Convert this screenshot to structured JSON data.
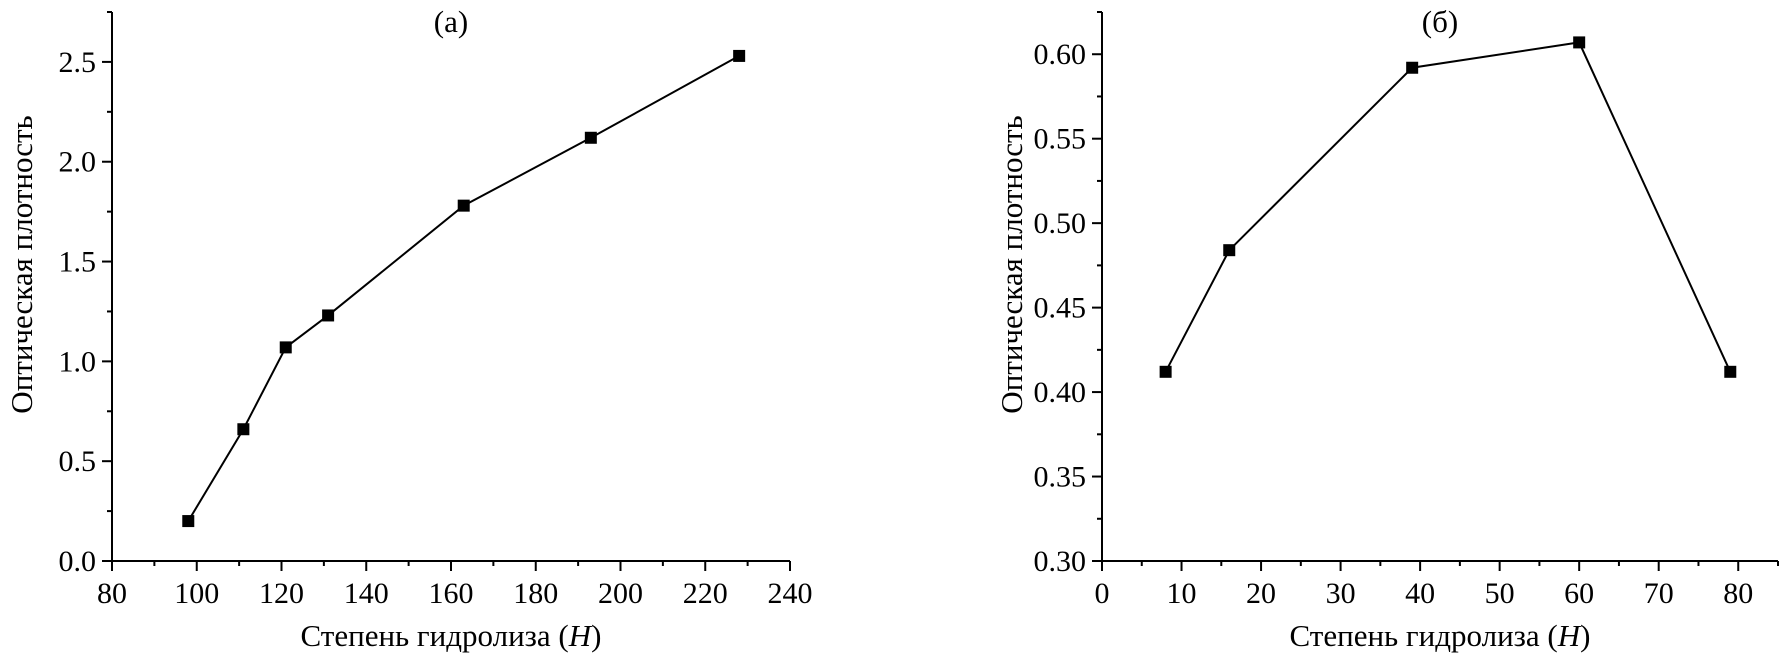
{
  "chart_data": [
    {
      "type": "line",
      "title": "(а)",
      "xlabel": "Степень гидролиза",
      "xlabel_var": "H",
      "ylabel": "Оптическая плотность",
      "xlim": [
        80,
        240
      ],
      "ylim": [
        0.0,
        2.75
      ],
      "xticks": [
        80,
        100,
        120,
        140,
        160,
        180,
        200,
        220,
        240
      ],
      "xtick_labels": [
        "80",
        "100",
        "120",
        "140",
        "160",
        "180",
        "200",
        "220",
        "240"
      ],
      "yticks": [
        0.0,
        0.5,
        1.0,
        1.5,
        2.0,
        2.5
      ],
      "ytick_labels": [
        "0.0",
        "0.5",
        "1.0",
        "1.5",
        "2.0",
        "2.5"
      ],
      "grid": false,
      "series": [
        {
          "marker": "square",
          "color": "#000000",
          "x": [
            98,
            111,
            121,
            131,
            163,
            193,
            228
          ],
          "y": [
            0.2,
            0.66,
            1.07,
            1.23,
            1.78,
            2.12,
            2.53
          ]
        }
      ]
    },
    {
      "type": "line",
      "title": "(б)",
      "xlabel": "Степень гидролиза",
      "xlabel_var": "H",
      "ylabel": "Оптическая плотность",
      "xlim": [
        0,
        85
      ],
      "ylim": [
        0.3,
        0.625
      ],
      "xticks": [
        0,
        10,
        20,
        30,
        40,
        50,
        60,
        70,
        80
      ],
      "xtick_labels": [
        "0",
        "10",
        "20",
        "30",
        "40",
        "50",
        "60",
        "70",
        "80"
      ],
      "yticks": [
        0.3,
        0.35,
        0.4,
        0.45,
        0.5,
        0.55,
        0.6
      ],
      "ytick_labels": [
        "0.30",
        "0.35",
        "0.40",
        "0.45",
        "0.50",
        "0.55",
        "0.60"
      ],
      "grid": false,
      "series": [
        {
          "marker": "square",
          "color": "#000000",
          "x": [
            8,
            16,
            39,
            60,
            79
          ],
          "y": [
            0.412,
            0.484,
            0.592,
            0.607,
            0.412
          ]
        }
      ]
    }
  ]
}
